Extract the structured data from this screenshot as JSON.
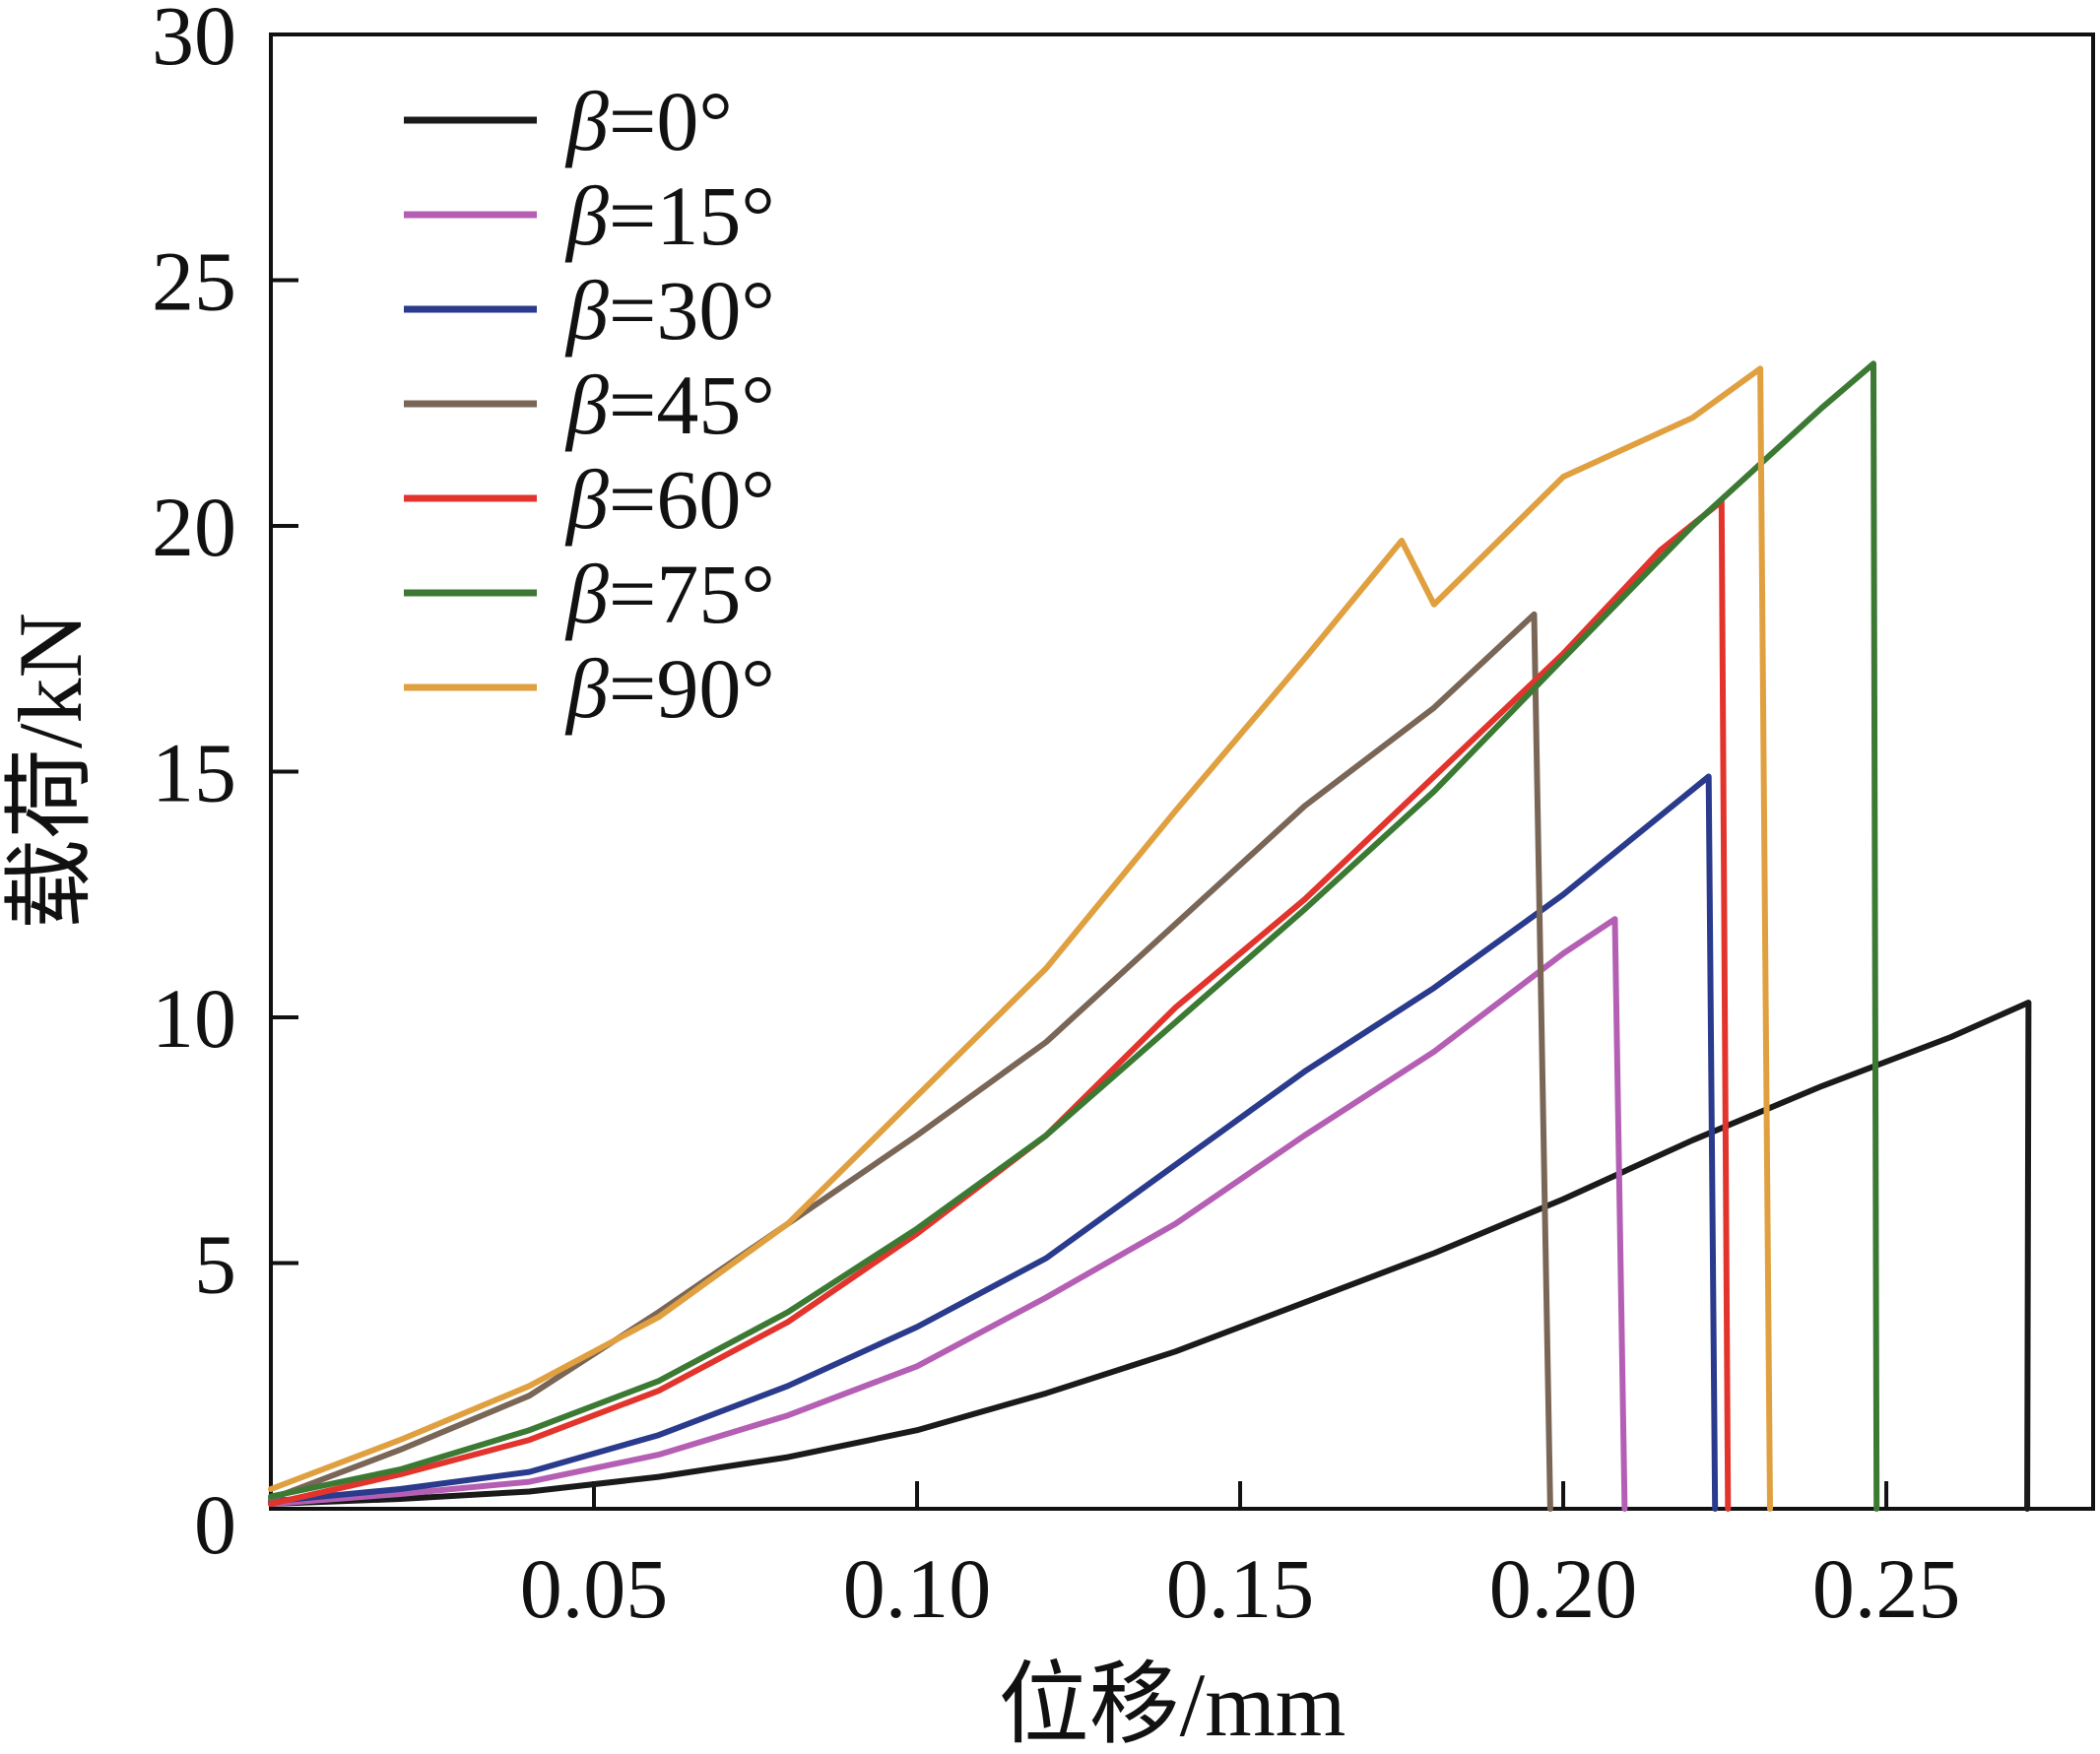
{
  "chart_data": {
    "type": "line",
    "title": "",
    "xlabel": "位移/mm",
    "ylabel": "载荷/kN",
    "xlim": [
      0,
      0.282
    ],
    "ylim": [
      0,
      30
    ],
    "grid": false,
    "legend_position": "top-left",
    "x_ticks": [
      0.05,
      0.1,
      0.15,
      0.2,
      0.25
    ],
    "x_tick_labels": [
      "0.05",
      "0.10",
      "0.15",
      "0.20",
      "0.25"
    ],
    "y_ticks": [
      0,
      5,
      10,
      15,
      20,
      25,
      30
    ],
    "y_tick_labels": [
      "0",
      "5",
      "10",
      "15",
      "20",
      "25",
      "30"
    ],
    "series": [
      {
        "name": "β=0°",
        "beta": "β",
        "rest": "=0°",
        "color": "#1a1a1a",
        "points": [
          [
            0,
            0.1
          ],
          [
            0.02,
            0.2
          ],
          [
            0.04,
            0.35
          ],
          [
            0.06,
            0.65
          ],
          [
            0.08,
            1.05
          ],
          [
            0.1,
            1.6
          ],
          [
            0.12,
            2.35
          ],
          [
            0.14,
            3.2
          ],
          [
            0.16,
            4.2
          ],
          [
            0.18,
            5.2
          ],
          [
            0.2,
            6.3
          ],
          [
            0.22,
            7.5
          ],
          [
            0.24,
            8.6
          ],
          [
            0.26,
            9.6
          ],
          [
            0.272,
            10.3
          ],
          [
            0.2718,
            0
          ]
        ]
      },
      {
        "name": "β=15°",
        "beta": "β",
        "rest": "=15°",
        "color": "#b45fb4",
        "points": [
          [
            0,
            0.1
          ],
          [
            0.02,
            0.3
          ],
          [
            0.04,
            0.55
          ],
          [
            0.06,
            1.1
          ],
          [
            0.08,
            1.9
          ],
          [
            0.1,
            2.9
          ],
          [
            0.12,
            4.3
          ],
          [
            0.14,
            5.8
          ],
          [
            0.16,
            7.6
          ],
          [
            0.18,
            9.3
          ],
          [
            0.2,
            11.3
          ],
          [
            0.208,
            12.0
          ],
          [
            0.2095,
            0
          ]
        ]
      },
      {
        "name": "β=30°",
        "beta": "β",
        "rest": "=30°",
        "color": "#2a3a8c",
        "points": [
          [
            0,
            0.15
          ],
          [
            0.02,
            0.4
          ],
          [
            0.04,
            0.75
          ],
          [
            0.06,
            1.5
          ],
          [
            0.08,
            2.5
          ],
          [
            0.1,
            3.7
          ],
          [
            0.12,
            5.1
          ],
          [
            0.14,
            7.0
          ],
          [
            0.16,
            8.9
          ],
          [
            0.18,
            10.6
          ],
          [
            0.2,
            12.5
          ],
          [
            0.215,
            14.1
          ],
          [
            0.2225,
            14.9
          ],
          [
            0.2235,
            0
          ]
        ]
      },
      {
        "name": "β=45°",
        "beta": "β",
        "rest": "=45°",
        "color": "#7a6656",
        "points": [
          [
            0,
            0.2
          ],
          [
            0.02,
            1.2
          ],
          [
            0.04,
            2.3
          ],
          [
            0.06,
            4.0
          ],
          [
            0.08,
            5.8
          ],
          [
            0.1,
            7.6
          ],
          [
            0.12,
            9.5
          ],
          [
            0.14,
            11.9
          ],
          [
            0.16,
            14.3
          ],
          [
            0.18,
            16.3
          ],
          [
            0.1955,
            18.2
          ],
          [
            0.198,
            0
          ]
        ]
      },
      {
        "name": "β=60°",
        "beta": "β",
        "rest": "=60°",
        "color": "#e2342c",
        "points": [
          [
            0,
            0.1
          ],
          [
            0.02,
            0.7
          ],
          [
            0.04,
            1.4
          ],
          [
            0.06,
            2.4
          ],
          [
            0.08,
            3.8
          ],
          [
            0.1,
            5.6
          ],
          [
            0.12,
            7.6
          ],
          [
            0.14,
            10.2
          ],
          [
            0.16,
            12.4
          ],
          [
            0.18,
            14.9
          ],
          [
            0.2,
            17.4
          ],
          [
            0.215,
            19.5
          ],
          [
            0.2245,
            20.5
          ],
          [
            0.2255,
            0
          ]
        ]
      },
      {
        "name": "β=75°",
        "beta": "β",
        "rest": "=75°",
        "color": "#3c7a34",
        "points": [
          [
            0,
            0.25
          ],
          [
            0.02,
            0.8
          ],
          [
            0.04,
            1.6
          ],
          [
            0.06,
            2.6
          ],
          [
            0.08,
            4.0
          ],
          [
            0.1,
            5.7
          ],
          [
            0.12,
            7.6
          ],
          [
            0.14,
            9.9
          ],
          [
            0.16,
            12.2
          ],
          [
            0.18,
            14.6
          ],
          [
            0.2,
            17.3
          ],
          [
            0.22,
            20.0
          ],
          [
            0.24,
            22.4
          ],
          [
            0.248,
            23.3
          ],
          [
            0.2485,
            0
          ]
        ]
      },
      {
        "name": "β=90°",
        "beta": "β",
        "rest": "=90°",
        "color": "#e0a040",
        "points": [
          [
            0,
            0.4
          ],
          [
            0.02,
            1.4
          ],
          [
            0.04,
            2.5
          ],
          [
            0.06,
            3.9
          ],
          [
            0.08,
            5.8
          ],
          [
            0.1,
            8.4
          ],
          [
            0.12,
            11.0
          ],
          [
            0.14,
            14.2
          ],
          [
            0.16,
            17.3
          ],
          [
            0.175,
            19.7
          ],
          [
            0.18,
            18.4
          ],
          [
            0.2,
            21.0
          ],
          [
            0.22,
            22.2
          ],
          [
            0.2305,
            23.2
          ],
          [
            0.232,
            0
          ]
        ]
      }
    ]
  }
}
